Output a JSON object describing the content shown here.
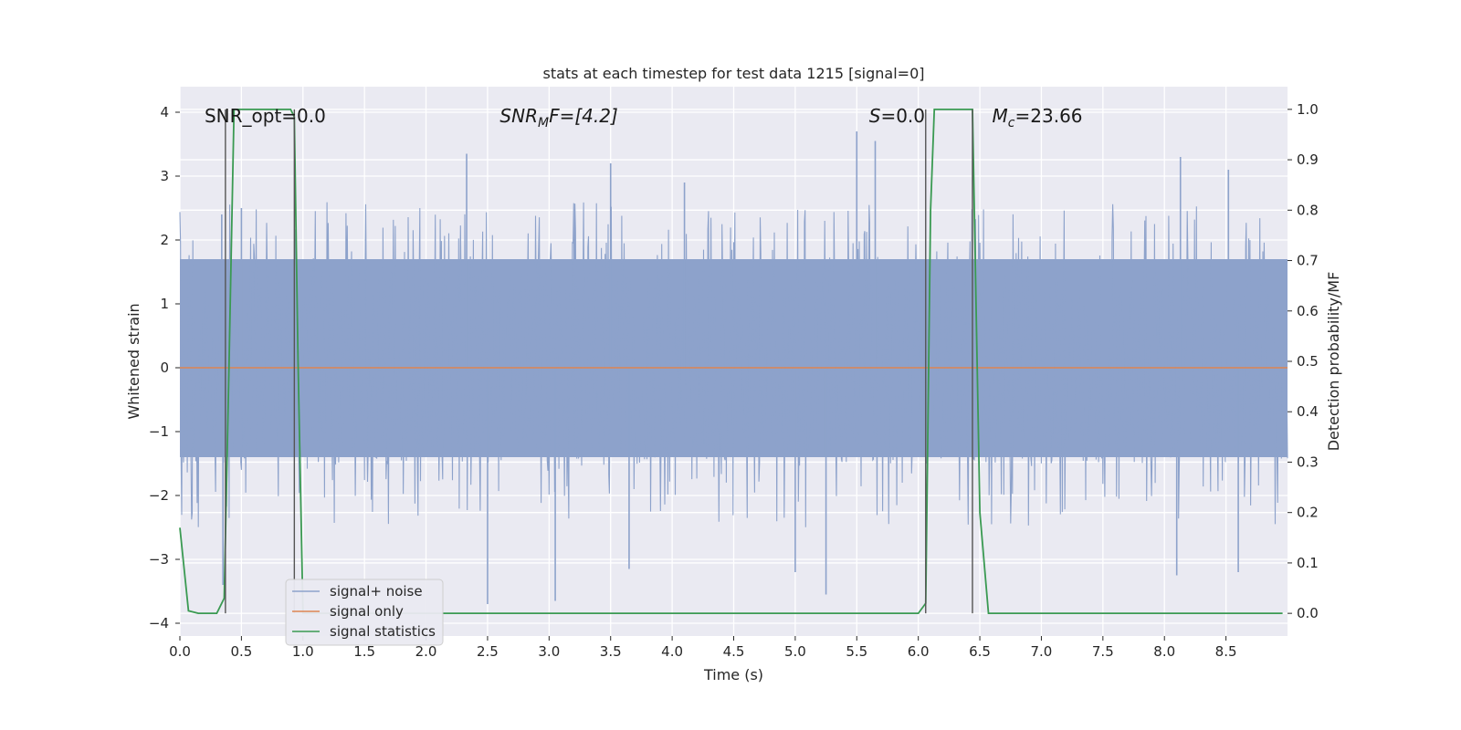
{
  "chart_data": {
    "type": "line",
    "title": "stats at each timestep for test data 1215 [signal=0]",
    "xlabel": "Time (s)",
    "ylabel": "Whitened strain",
    "ylabel_right": "Detection probability/MF",
    "xlim": [
      0.0,
      9.0
    ],
    "ylim": [
      -4.2,
      4.4
    ],
    "ylim_right": [
      -0.045,
      1.045
    ],
    "x_ticks": [
      "0.0",
      "0.5",
      "1.0",
      "1.5",
      "2.0",
      "2.5",
      "3.0",
      "3.5",
      "4.0",
      "4.5",
      "5.0",
      "5.5",
      "6.0",
      "6.5",
      "7.0",
      "7.5",
      "8.0",
      "8.5"
    ],
    "y_ticks": [
      "−4",
      "−3",
      "−2",
      "−1",
      "0",
      "1",
      "2",
      "3",
      "4"
    ],
    "y_ticks_right": [
      "0.0",
      "0.1",
      "0.2",
      "0.3",
      "0.4",
      "0.5",
      "0.6",
      "0.7",
      "0.8",
      "0.9",
      "1.0"
    ],
    "grid": true,
    "legend_position": "lower-left",
    "colors": {
      "background": "#eaeaf2",
      "signal_noise": "#8da2cb",
      "signal_only": "#dd8452",
      "signal_statistics": "#3a9a52",
      "vlines": "#555555"
    },
    "series": [
      {
        "name": "signal+ noise",
        "note_values": "dense noise, approx. uniform band",
        "band": [
          -1.4,
          1.7
        ],
        "peaks_upper": [
          [
            0.34,
            2.4
          ],
          [
            0.5,
            2.5
          ],
          [
            2.33,
            3.35
          ],
          [
            3.5,
            3.2
          ],
          [
            4.1,
            2.9
          ],
          [
            5.5,
            3.7
          ],
          [
            5.65,
            3.55
          ],
          [
            8.13,
            3.3
          ],
          [
            8.52,
            3.1
          ]
        ],
        "peaks_lower": [
          [
            0.35,
            -3.4
          ],
          [
            2.5,
            -3.7
          ],
          [
            3.05,
            -3.65
          ],
          [
            3.65,
            -3.15
          ],
          [
            5.0,
            -3.2
          ],
          [
            5.25,
            -3.55
          ],
          [
            8.1,
            -3.25
          ],
          [
            8.6,
            -3.2
          ]
        ]
      },
      {
        "name": "signal only",
        "x": [
          0.0,
          9.0
        ],
        "y": [
          0.0,
          0.0
        ]
      },
      {
        "name": "signal statistics",
        "axis": "right",
        "x": [
          0.0,
          0.07,
          0.15,
          0.3,
          0.36,
          0.4,
          0.44,
          0.6,
          0.8,
          0.9,
          0.93,
          0.96,
          1.0,
          1.5,
          2.0,
          3.0,
          4.0,
          5.0,
          6.0,
          6.06,
          6.1,
          6.13,
          6.3,
          6.44,
          6.5,
          6.57,
          7.0,
          8.0,
          8.96
        ],
        "y": [
          0.17,
          0.005,
          0.0,
          0.0,
          0.03,
          0.5,
          1.0,
          1.0,
          1.0,
          1.0,
          0.985,
          0.5,
          0.0,
          0.0,
          0.0,
          0.0,
          0.0,
          0.0,
          0.0,
          0.02,
          0.8,
          1.0,
          1.0,
          1.0,
          0.2,
          0.0,
          0.0,
          0.0,
          0.0
        ]
      }
    ],
    "vertical_lines": [
      0.37,
      0.93,
      6.06,
      6.44
    ],
    "annotations": [
      {
        "text": "SNR_opt=0.0",
        "italic": false,
        "x": 0.2,
        "y": 3.9
      },
      {
        "text": "SNR",
        "sub": "M",
        "tail": "F=[4.2]",
        "italic": true,
        "x": 2.6,
        "y": 3.9
      },
      {
        "text": "S",
        "tail": "=0.0",
        "italic": true,
        "x": 5.6,
        "y": 3.9
      },
      {
        "text": "M",
        "sub": "c",
        "tail": "=23.66",
        "italic": true,
        "x": 6.6,
        "y": 3.9
      }
    ]
  }
}
